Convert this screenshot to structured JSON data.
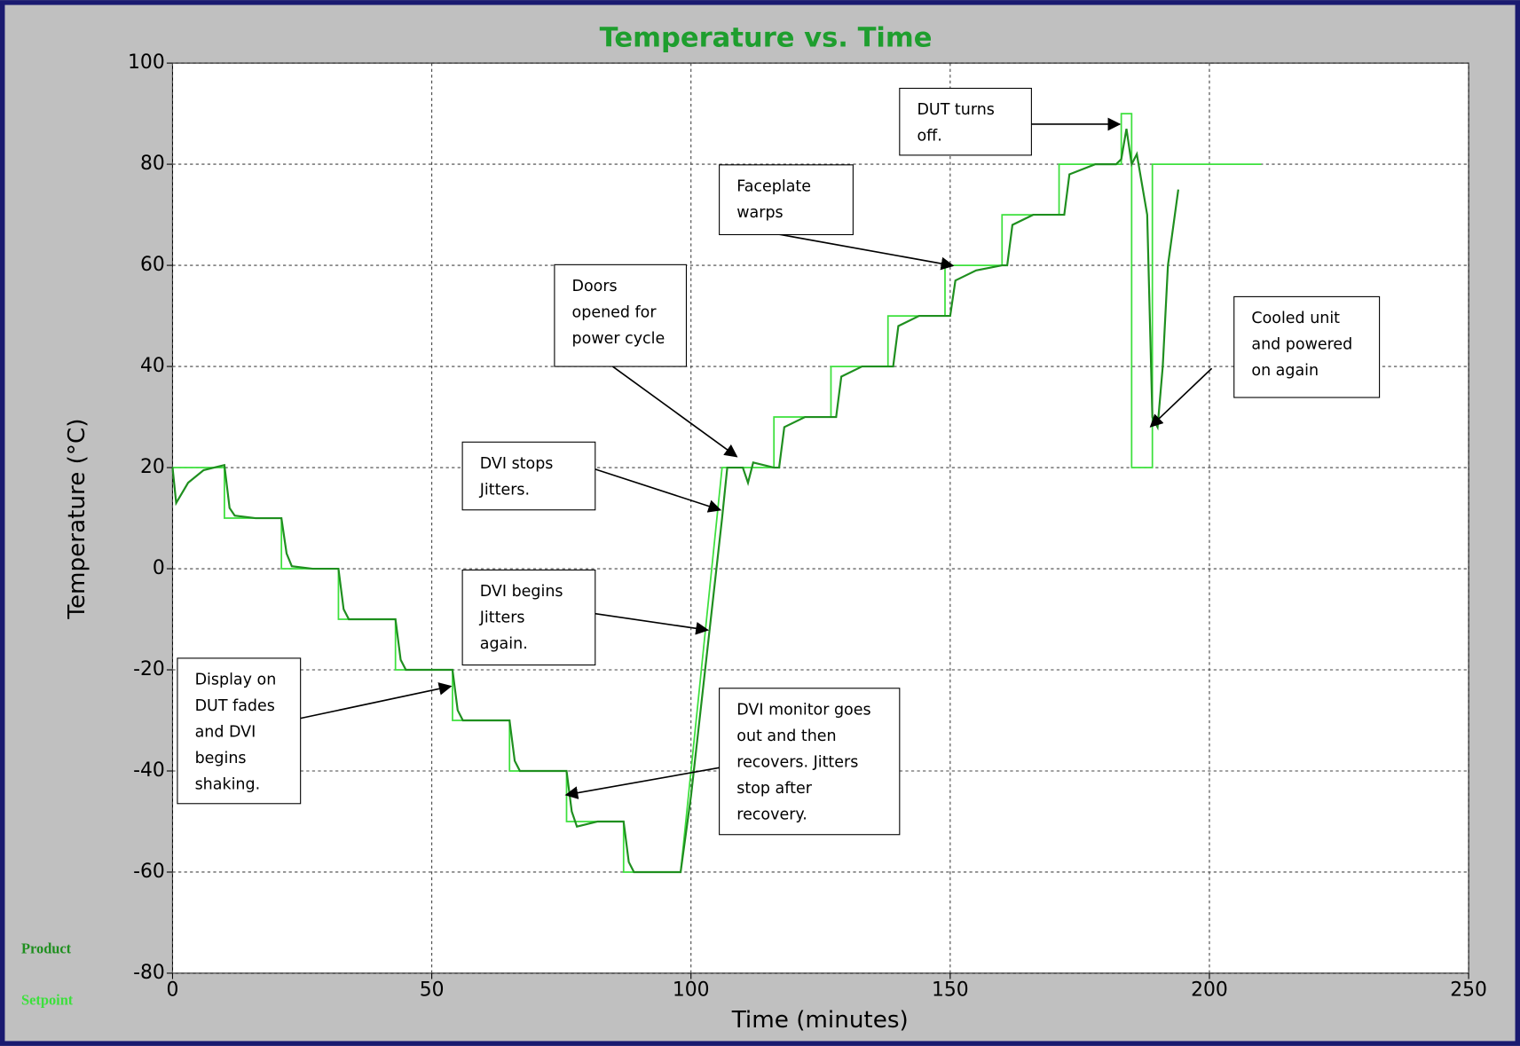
{
  "chart_data": {
    "type": "line",
    "title": "Temperature vs. Time",
    "xlabel": "Time (minutes)",
    "ylabel": "Temperature (°C)",
    "xlim": [
      0,
      250
    ],
    "ylim": [
      -80,
      100
    ],
    "xticks": [
      0,
      50,
      100,
      150,
      200,
      250
    ],
    "yticks": [
      -80,
      -60,
      -40,
      -20,
      0,
      20,
      40,
      60,
      80,
      100
    ],
    "grid": true,
    "legend": "lower left",
    "series": [
      {
        "name": "Product",
        "color": "#1f8f1f",
        "x": [
          0,
          0.7,
          3,
          6,
          10,
          11,
          12,
          16,
          21,
          22,
          23,
          27,
          32,
          33,
          34,
          38,
          43,
          44,
          45,
          49,
          54,
          55,
          56,
          60,
          65,
          66,
          67,
          71,
          76,
          77,
          78,
          82,
          87,
          88,
          89,
          93,
          98,
          100,
          106,
          107,
          110,
          111,
          112,
          116,
          117,
          118,
          122,
          127,
          128,
          129,
          133,
          138,
          139,
          140,
          144,
          149,
          150,
          151,
          155,
          160,
          161,
          162,
          166,
          171,
          172,
          173,
          178,
          182,
          183,
          184,
          185,
          186,
          188,
          189,
          190,
          191,
          192,
          194
        ],
        "values": [
          20,
          13,
          17,
          19.5,
          20.5,
          12,
          10.5,
          10,
          10,
          3,
          0.5,
          0,
          0,
          -8,
          -10,
          -10,
          -10,
          -18,
          -20,
          -20,
          -20,
          -28,
          -30,
          -30,
          -30,
          -38,
          -40,
          -40,
          -40,
          -48,
          -51,
          -50,
          -50,
          -58,
          -60,
          -60,
          -60,
          -45,
          10,
          20,
          20,
          17,
          21,
          20,
          20,
          28,
          30,
          30,
          30,
          38,
          40,
          40,
          40,
          48,
          50,
          50,
          50,
          57,
          59,
          60,
          60,
          68,
          70,
          70,
          70,
          78,
          80,
          80,
          81,
          87,
          80,
          82,
          70,
          30,
          28,
          40,
          60,
          75
        ]
      },
      {
        "name": "Setpoint",
        "color": "#3de03d",
        "x": [
          0,
          10,
          10,
          21,
          21,
          32,
          32,
          43,
          43,
          54,
          54,
          65,
          65,
          76,
          76,
          87,
          87,
          98,
          106,
          116,
          116,
          127,
          127,
          138,
          138,
          149,
          149,
          160,
          160,
          171,
          171,
          183,
          183,
          185,
          185,
          189,
          189,
          210
        ],
        "values": [
          20,
          20,
          10,
          10,
          0,
          0,
          -10,
          -10,
          -20,
          -20,
          -30,
          -30,
          -40,
          -40,
          -50,
          -50,
          -60,
          -60,
          20,
          20,
          30,
          30,
          40,
          40,
          50,
          50,
          60,
          60,
          70,
          70,
          80,
          80,
          90,
          90,
          20,
          20,
          80,
          80
        ]
      }
    ],
    "annotations": [
      {
        "lines": [
          "DUT turns",
          "off."
        ]
      },
      {
        "lines": [
          "Faceplate",
          "warps"
        ]
      },
      {
        "lines": [
          "Doors",
          "opened for",
          "power cycle"
        ]
      },
      {
        "lines": [
          "Cooled unit",
          "and powered",
          "on again"
        ]
      },
      {
        "lines": [
          "DVI stops",
          "Jitters."
        ]
      },
      {
        "lines": [
          "DVI begins",
          "Jitters",
          "again."
        ]
      },
      {
        "lines": [
          "Display on",
          "DUT fades",
          "and DVI",
          "begins",
          "shaking."
        ]
      },
      {
        "lines": [
          "DVI monitor goes",
          "out and then",
          "recovers. Jitters",
          "stop after",
          "recovery."
        ]
      }
    ]
  }
}
